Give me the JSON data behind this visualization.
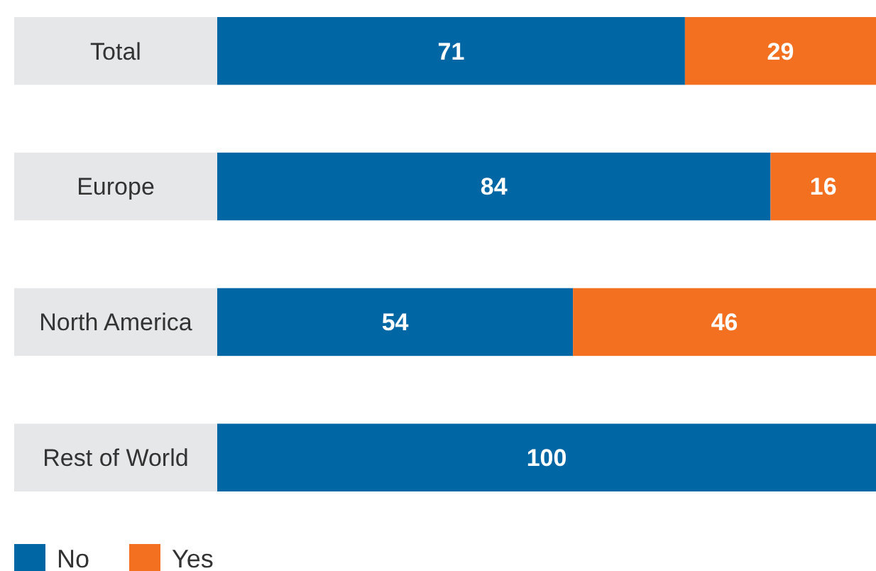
{
  "chart_data": {
    "type": "bar",
    "orientation": "horizontal",
    "stacked": true,
    "categories": [
      "Total",
      "Europe",
      "North America",
      "Rest of World"
    ],
    "xlim": [
      0,
      100
    ],
    "legend": "bottom left",
    "series": [
      {
        "name": "No",
        "color": "#0066a4",
        "values": [
          71,
          84,
          54,
          100
        ],
        "value_labels": [
          "71",
          "84",
          "54",
          "100"
        ]
      },
      {
        "name": "Yes",
        "color": "#f37021",
        "values": [
          29,
          16,
          46,
          0
        ],
        "value_labels": [
          "29",
          "16",
          "46",
          null
        ]
      }
    ]
  }
}
